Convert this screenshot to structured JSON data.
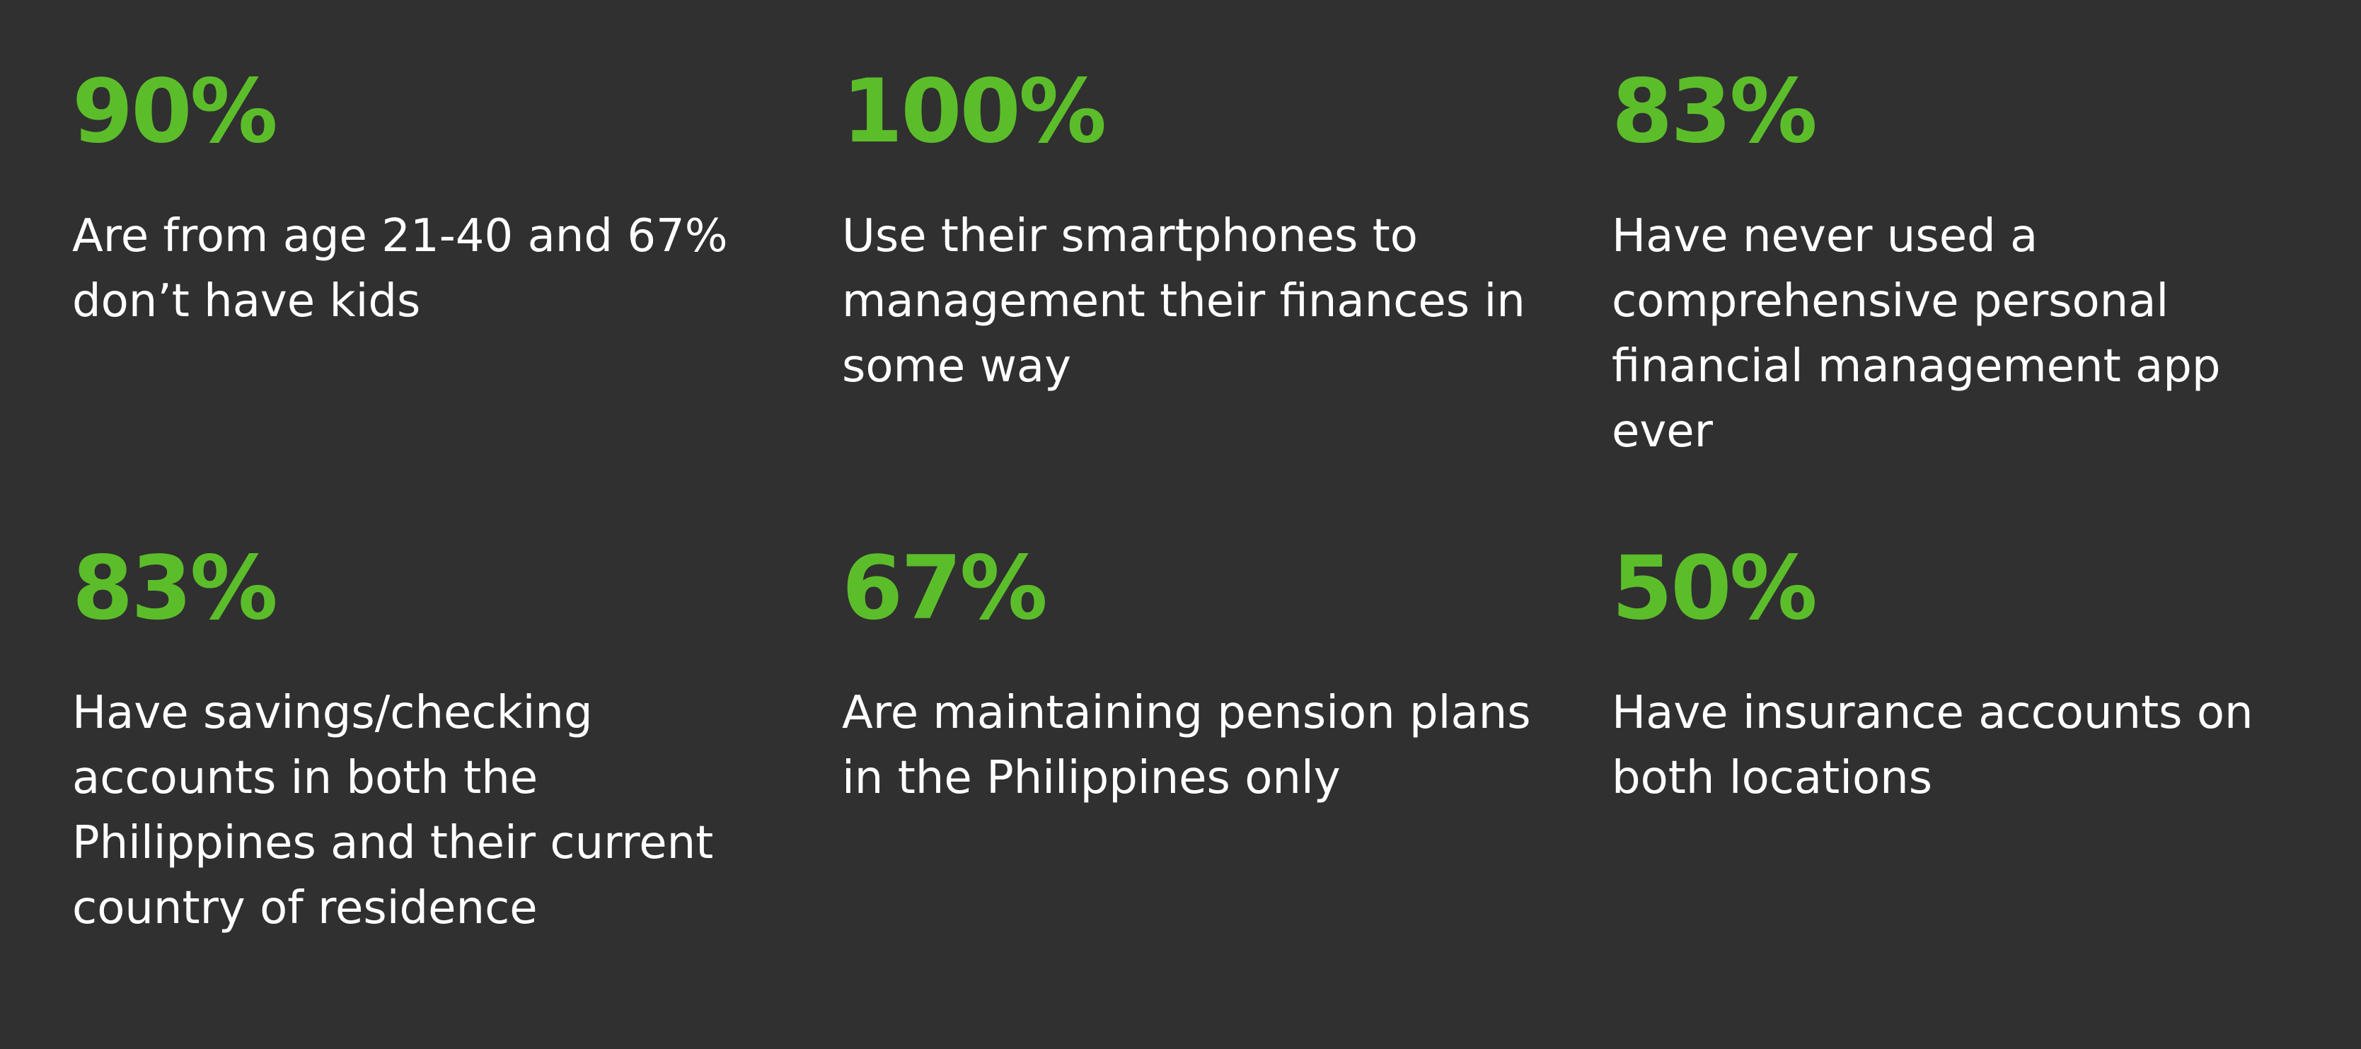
{
  "colors": {
    "background": "#303030",
    "accent": "#5cbd2a",
    "text": "#ffffff"
  },
  "stats": [
    {
      "value": "90%",
      "text": "Are from age 21-40 and 67% don’t have kids"
    },
    {
      "value": "100%",
      "text": "Use their smartphones to management their finances in some way"
    },
    {
      "value": "83%",
      "text": "Have never used a comprehensive personal financial management app ever"
    },
    {
      "value": "83%",
      "text": "Have savings/checking accounts in both the Philippines and their current country of residence"
    },
    {
      "value": "67%",
      "text": "Are maintaining pension plans in the Philippines only"
    },
    {
      "value": "50%",
      "text": "Have insurance accounts on both locations"
    }
  ]
}
